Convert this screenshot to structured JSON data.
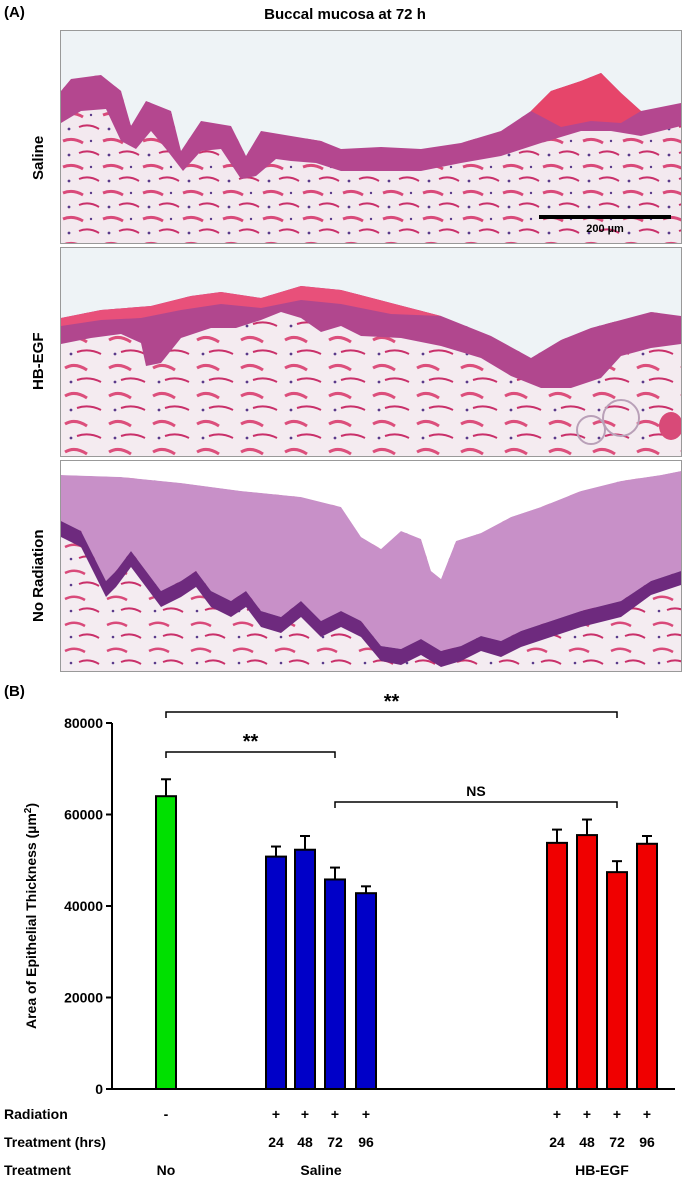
{
  "panel_a": {
    "label": "(A)",
    "title": "Buccal mucosa at 72 h",
    "rows": [
      {
        "label": "Saline"
      },
      {
        "label": "HB-EGF"
      },
      {
        "label": "No Radiation"
      }
    ],
    "scale_bar_label": "200 µm"
  },
  "panel_b": {
    "label": "(B)",
    "significance": [
      {
        "label": "**"
      },
      {
        "label": "**"
      },
      {
        "label": "NS"
      }
    ],
    "table": {
      "rows": [
        {
          "label": "Radiation",
          "values": [
            "-",
            "+",
            "+",
            "+",
            "+",
            "+",
            "+",
            "+",
            "+"
          ]
        },
        {
          "label": "Treatment (hrs)",
          "values": [
            "",
            "24",
            "48",
            "72",
            "96",
            "24",
            "48",
            "72",
            "96"
          ]
        },
        {
          "label": "Treatment",
          "groups": [
            "No",
            "Saline",
            "HB-EGF"
          ]
        }
      ]
    }
  },
  "chart_data": {
    "type": "bar",
    "ylabel": "Area of Epithelial Thickness (µm²)",
    "ylim": [
      0,
      80000
    ],
    "yticks": [
      "0",
      "20000",
      "40000",
      "60000",
      "80000"
    ],
    "categories": [
      "No",
      "Saline 24",
      "Saline 48",
      "Saline 72",
      "Saline 96",
      "HB-EGF 24",
      "HB-EGF 48",
      "HB-EGF 72",
      "HB-EGF 96"
    ],
    "values": [
      64000,
      50800,
      52300,
      45800,
      42800,
      53800,
      55500,
      47400,
      53600
    ],
    "errors": [
      3700,
      2200,
      3000,
      2600,
      1500,
      2900,
      3400,
      2400,
      1700
    ],
    "colors": [
      "#00e000",
      "#0000c8",
      "#0000c8",
      "#0000c8",
      "#0000c8",
      "#f00000",
      "#f00000",
      "#f00000",
      "#f00000"
    ],
    "grid": false
  }
}
